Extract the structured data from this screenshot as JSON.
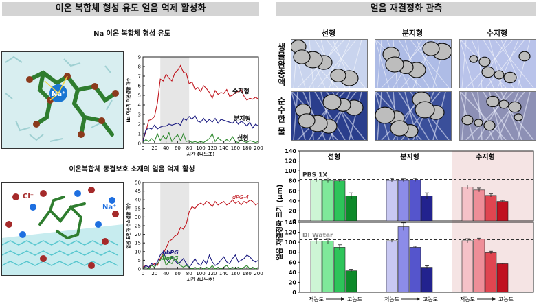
{
  "left": {
    "header": "이온 복합체 형성 유도 얼음 억제 활성화",
    "top_title": "Na 이온 복합체 형성 유도",
    "bottom_title": "이온복합체 동결보호 소재의 얼음 억제 활성",
    "na_label": "Na⁺",
    "cl_label": "Cl⁻",
    "na_label2": "Na⁺"
  },
  "right": {
    "header": "얼음 재결정화 관측",
    "col_labels": [
      "선형",
      "분지형",
      "수지형"
    ],
    "row_labels": [
      "생물완충액",
      "순수한 물"
    ]
  },
  "colors": {
    "red": "#c0141c",
    "navy": "#1a1a80",
    "green": "#2f8a2f",
    "shade": "#e6e6e6",
    "pink_bg": "#f5e4e4"
  },
  "chart_data": [
    {
      "type": "line",
      "ylabel": "Na 이온과 이온결합 개수",
      "xlabel": "시간 (나노초)",
      "xlim": [
        0,
        200
      ],
      "ylim": [
        0,
        9
      ],
      "xticks": [
        0,
        20,
        40,
        60,
        80,
        100,
        120,
        140,
        160,
        180,
        200
      ],
      "yticks": [
        0,
        1,
        2,
        3,
        4,
        5,
        6,
        7,
        8,
        9
      ],
      "shaded_x": [
        30,
        80
      ],
      "series": [
        {
          "name": "수지형",
          "color": "#c0141c",
          "x": [
            0,
            5,
            10,
            15,
            20,
            25,
            30,
            35,
            40,
            45,
            50,
            55,
            60,
            65,
            70,
            75,
            80,
            85,
            90,
            95,
            100,
            105,
            110,
            115,
            120,
            125,
            130,
            135,
            140,
            145,
            150,
            155,
            160,
            165,
            170,
            175,
            180,
            185,
            190,
            195,
            200
          ],
          "y": [
            0.3,
            1.2,
            2.4,
            2.5,
            2.8,
            4.2,
            6.7,
            6.5,
            7.2,
            6.8,
            6.5,
            7.3,
            7.6,
            8.1,
            7.4,
            7.3,
            6.2,
            6.4,
            5.6,
            5.8,
            5.4,
            6.0,
            5.7,
            5.3,
            4.7,
            5.5,
            5.1,
            5.3,
            5.2,
            5.6,
            4.9,
            5.0,
            5.3,
            5.4,
            5.6,
            4.9,
            4.5,
            4.7,
            4.6,
            4.8,
            4.6
          ]
        },
        {
          "name": "분지형",
          "color": "#1a1a80",
          "x": [
            0,
            5,
            10,
            15,
            20,
            25,
            30,
            35,
            40,
            45,
            50,
            55,
            60,
            65,
            70,
            75,
            80,
            85,
            90,
            95,
            100,
            105,
            110,
            115,
            120,
            125,
            130,
            135,
            140,
            145,
            150,
            155,
            160,
            165,
            170,
            175,
            180,
            185,
            190,
            195,
            200
          ],
          "y": [
            0.2,
            1.4,
            1.6,
            1.5,
            1.9,
            1.5,
            1.7,
            1.8,
            1.8,
            2.0,
            1.9,
            2.0,
            2.1,
            1.9,
            2.6,
            2.4,
            2.8,
            2.5,
            2.9,
            2.3,
            2.2,
            2.6,
            2.2,
            2.5,
            2.2,
            2.6,
            2.1,
            2.5,
            2.4,
            2.3,
            2.2,
            2.1,
            2.4,
            2.0,
            2.3,
            2.1,
            1.8,
            2.2,
            1.6,
            2.0,
            1.8
          ]
        },
        {
          "name": "선형",
          "color": "#2f8a2f",
          "x": [
            0,
            5,
            10,
            15,
            20,
            25,
            30,
            35,
            40,
            45,
            50,
            55,
            60,
            65,
            70,
            75,
            80,
            85,
            90,
            95,
            100,
            105,
            110,
            115,
            120,
            125,
            130,
            135,
            140,
            145,
            150,
            155,
            160,
            165,
            170,
            175,
            180,
            185,
            190,
            195,
            200
          ],
          "y": [
            0.1,
            0.4,
            0.2,
            0.5,
            0.2,
            1.0,
            0.3,
            0.8,
            0.4,
            1.1,
            0.2,
            0.6,
            0.9,
            0.3,
            1.0,
            0.2,
            0.3,
            0.1,
            0.2,
            0.1,
            0.2,
            0.1,
            0.3,
            0.5,
            1.0,
            0.2,
            0.6,
            0.3,
            0.2,
            0.4,
            0.2,
            0.7,
            0.2,
            0.1,
            0.4,
            0.2,
            0.1,
            0.3,
            0.2,
            0.1,
            0.2
          ]
        }
      ]
    },
    {
      "type": "line",
      "ylabel": "얼음 표면과 수소결합 개수",
      "xlabel": "시간 (나노초)",
      "xlim": [
        0,
        200
      ],
      "ylim": [
        0,
        50
      ],
      "xticks": [
        0,
        20,
        40,
        60,
        80,
        100,
        120,
        140,
        160,
        180,
        200
      ],
      "yticks": [
        0,
        5,
        10,
        15,
        20,
        25,
        30,
        35,
        40,
        45,
        50
      ],
      "shaded_x": [
        30,
        80
      ],
      "series": [
        {
          "name": "dPG-4",
          "color": "#c0141c",
          "x": [
            0,
            5,
            10,
            15,
            20,
            25,
            30,
            35,
            40,
            45,
            50,
            55,
            60,
            65,
            70,
            75,
            80,
            85,
            90,
            95,
            100,
            105,
            110,
            115,
            120,
            125,
            130,
            135,
            140,
            145,
            150,
            155,
            160,
            165,
            170,
            175,
            180,
            185,
            190,
            195,
            200
          ],
          "y": [
            1,
            2,
            1,
            2,
            3,
            2,
            6,
            9,
            12,
            16,
            17,
            19,
            20,
            24,
            23,
            26,
            33,
            36,
            35,
            37,
            38,
            37,
            39,
            38,
            36,
            39,
            37,
            38,
            39,
            37,
            38,
            40,
            38,
            39,
            37,
            39,
            38,
            40,
            39,
            37,
            38
          ]
        },
        {
          "name": "hbPG",
          "color": "#1a1a80",
          "x": [
            0,
            5,
            10,
            15,
            20,
            25,
            30,
            35,
            40,
            45,
            50,
            55,
            60,
            65,
            70,
            75,
            80,
            85,
            90,
            95,
            100,
            105,
            110,
            115,
            120,
            125,
            130,
            135,
            140,
            145,
            150,
            155,
            160,
            165,
            170,
            175,
            180,
            185,
            190,
            195,
            200
          ],
          "y": [
            0,
            2,
            1,
            3,
            2,
            4,
            8,
            10,
            6,
            4,
            7,
            5,
            3,
            4,
            6,
            3,
            1,
            3,
            6,
            3,
            2,
            5,
            3,
            8,
            4,
            2,
            3,
            5,
            7,
            4,
            3,
            6,
            8,
            4,
            5,
            6,
            8,
            7,
            5,
            4,
            5
          ]
        },
        {
          "name": "linPG",
          "color": "#2f8a2f",
          "x": [
            0,
            5,
            10,
            15,
            20,
            25,
            30,
            35,
            40,
            45,
            50,
            55,
            60,
            65,
            70,
            75,
            80,
            85,
            90,
            95,
            100,
            105,
            110,
            115,
            120,
            125,
            130,
            135,
            140,
            145,
            150,
            155,
            160,
            165,
            170,
            175,
            180,
            185,
            190,
            195,
            200
          ],
          "y": [
            0,
            1,
            0,
            2,
            1,
            3,
            5,
            8,
            2,
            4,
            3,
            6,
            4,
            2,
            1,
            2,
            1,
            0,
            1,
            0,
            1,
            0,
            1,
            0,
            2,
            0,
            1,
            0,
            1,
            2,
            0,
            1,
            0,
            1,
            0,
            1,
            2,
            0,
            1,
            0,
            1
          ]
        }
      ]
    },
    {
      "type": "bar",
      "title": "",
      "ylabel": "얼음 재결정화 크기 (μm)",
      "group_labels": [
        "선형",
        "분지형",
        "수지형"
      ],
      "panels": [
        {
          "label": "PBS 1X",
          "ylim": [
            0,
            140
          ],
          "yticks": [
            0,
            20,
            40,
            60,
            80,
            100,
            120,
            140
          ],
          "reference": 83,
          "groups": [
            {
              "name": "선형",
              "values": [
                82,
                81,
                80,
                50
              ],
              "errors": [
                4,
                5,
                3,
                6
              ],
              "colors": [
                "#cdf5d5",
                "#7fe99a",
                "#2ec45a",
                "#0d8a2a"
              ]
            },
            {
              "name": "분지형",
              "values": [
                81,
                81,
                82,
                50
              ],
              "errors": [
                4,
                3,
                3,
                6
              ],
              "colors": [
                "#c8c8f2",
                "#8c8ce8",
                "#5555cc",
                "#22228e"
              ]
            },
            {
              "name": "수지형",
              "values": [
                68,
                62,
                51,
                39
              ],
              "errors": [
                4,
                4,
                3,
                2
              ],
              "colors": [
                "#f5c2c8",
                "#ee8e98",
                "#e04550",
                "#c01020"
              ]
            }
          ]
        },
        {
          "label": "DI Water",
          "ylim": [
            0,
            140
          ],
          "yticks": [
            0,
            20,
            40,
            60,
            80,
            100,
            120,
            140
          ],
          "reference": 105,
          "groups": [
            {
              "name": "선형",
              "values": [
                102,
                102,
                90,
                43
              ],
              "errors": [
                6,
                5,
                5,
                3
              ],
              "colors": [
                "#cdf5d5",
                "#7fe99a",
                "#2ec45a",
                "#0d8a2a"
              ]
            },
            {
              "name": "분지형",
              "values": [
                103,
                131,
                90,
                50
              ],
              "errors": [
                3,
                8,
                2,
                3
              ],
              "colors": [
                "#c8c8f2",
                "#8c8ce8",
                "#5555cc",
                "#22228e"
              ]
            },
            {
              "name": "수지형",
              "values": [
                103,
                106,
                79,
                57
              ],
              "errors": [
                4,
                2,
                3,
                1
              ],
              "colors": [
                "#f5c2c8",
                "#ee8e98",
                "#e04550",
                "#c01020"
              ]
            }
          ]
        }
      ],
      "x_low_label": "저농도",
      "x_high_label": "고농도"
    }
  ]
}
